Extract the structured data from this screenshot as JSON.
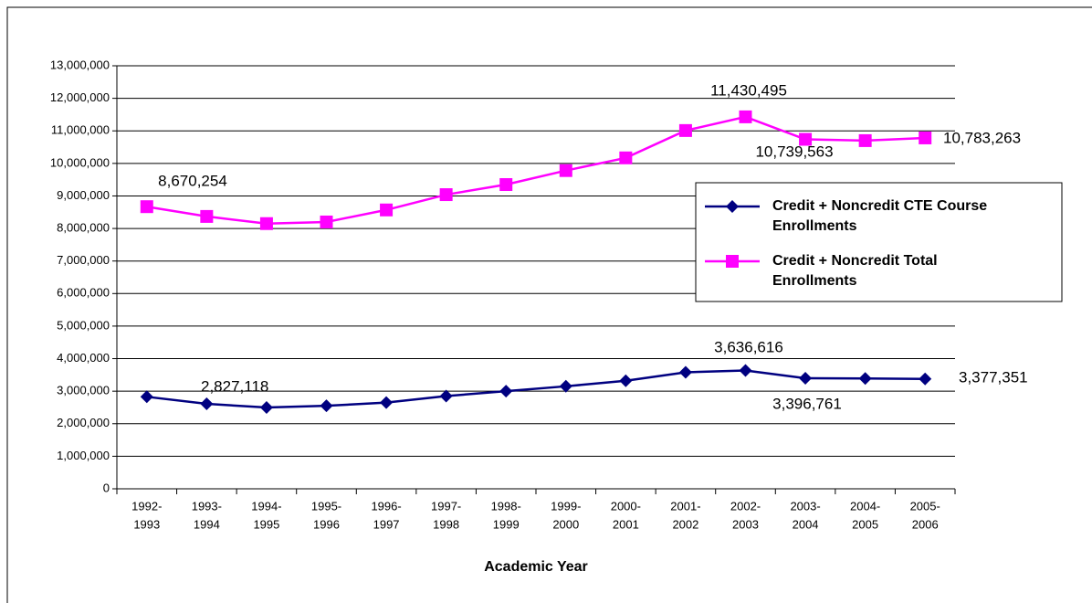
{
  "chart_data": {
    "type": "line",
    "x_label": "Academic Year",
    "categories": [
      [
        "1992-",
        "1993"
      ],
      [
        "1993-",
        "1994"
      ],
      [
        "1994-",
        "1995"
      ],
      [
        "1995-",
        "1996"
      ],
      [
        "1996-",
        "1997"
      ],
      [
        "1997-",
        "1998"
      ],
      [
        "1998-",
        "1999"
      ],
      [
        "1999-",
        "2000"
      ],
      [
        "2000-",
        "2001"
      ],
      [
        "2001-",
        "2002"
      ],
      [
        "2002-",
        "2003"
      ],
      [
        "2003-",
        "2004"
      ],
      [
        "2004-",
        "2005"
      ],
      [
        "2005-",
        "2006"
      ]
    ],
    "series": [
      {
        "name": "Credit + Noncredit CTE Course Enrollments",
        "color": "#000080",
        "marker": "diamond",
        "values": [
          2827118,
          2610000,
          2500000,
          2550000,
          2650000,
          2850000,
          3000000,
          3150000,
          3320000,
          3580000,
          3636616,
          3396761,
          3390000,
          3377351
        ],
        "value_labels": [
          "2,827,118",
          null,
          null,
          null,
          null,
          null,
          null,
          null,
          null,
          null,
          "3,636,616",
          "3,396,761",
          null,
          "3,377,351"
        ]
      },
      {
        "name": "Credit + Noncredit Total Enrollments",
        "color": "#ff00ff",
        "marker": "square",
        "values": [
          8670254,
          8370000,
          8150000,
          8200000,
          8570000,
          9040000,
          9350000,
          9780000,
          10170000,
          11010000,
          11430495,
          10739563,
          10700000,
          10783263
        ],
        "value_labels": [
          "8,670,254",
          null,
          null,
          null,
          null,
          null,
          null,
          null,
          null,
          null,
          "11,430,495",
          "10,739,563",
          null,
          "10,783,263"
        ]
      }
    ],
    "ylim": [
      0,
      13000000
    ],
    "yticks": [
      0,
      {
        "value": 1000000,
        "label": "1,000,000"
      },
      {
        "value": 2000000,
        "label": "2,000,000"
      },
      {
        "value": 3000000,
        "label": "3,000,000"
      },
      {
        "value": 4000000,
        "label": "4,000,000"
      },
      {
        "value": 5000000,
        "label": "5,000,000"
      },
      {
        "value": 6000000,
        "label": "6,000,000"
      },
      {
        "value": 7000000,
        "label": "7,000,000"
      },
      {
        "value": 8000000,
        "label": "8,000,000"
      },
      {
        "value": 9000000,
        "label": "9,000,000"
      },
      {
        "value": 10000000,
        "label": "10,000,000"
      },
      {
        "value": 11000000,
        "label": "11,000,000"
      },
      {
        "value": 12000000,
        "label": "12,000,000"
      },
      {
        "value": 13000000,
        "label": "13,000,000"
      }
    ],
    "grid": true,
    "legend": "right"
  }
}
